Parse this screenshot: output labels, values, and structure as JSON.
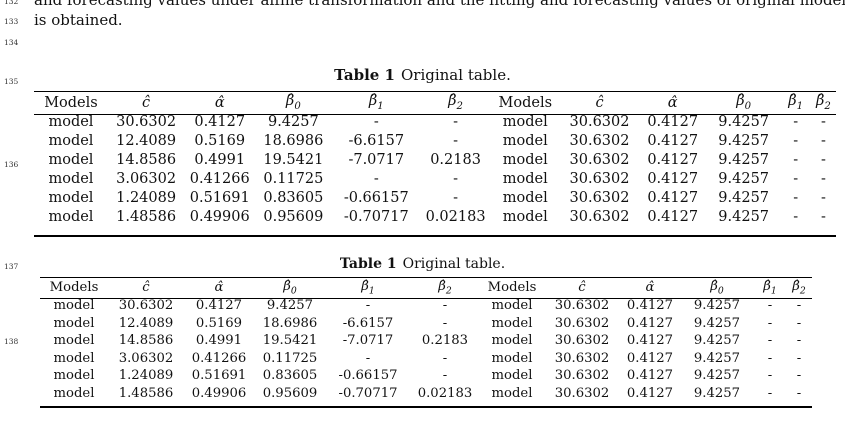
{
  "line_numbers": [
    "132",
    "133",
    "134",
    "135",
    "136",
    "137",
    "138"
  ],
  "body_text": {
    "line1": "and forecasting values under affine transformation and the fitting and forecasting values of original model",
    "line2": "is obtained."
  },
  "table1": {
    "caption_label": "Table 1",
    "caption_text": "Original table.",
    "headers": [
      "Models",
      "ĉ",
      "α̂",
      "β̂0",
      "β̂1",
      "β̂2",
      "Models",
      "ĉ",
      "α̂",
      "β̂0",
      "β̂1",
      "β̂2"
    ],
    "rows": [
      [
        "model",
        "30.6302",
        "0.4127",
        "9.4257",
        "-",
        "-",
        "model",
        "30.6302",
        "0.4127",
        "9.4257",
        "-",
        "-"
      ],
      [
        "model",
        "12.4089",
        "0.5169",
        "18.6986",
        "-6.6157",
        "-",
        "model",
        "30.6302",
        "0.4127",
        "9.4257",
        "-",
        "-"
      ],
      [
        "model",
        "14.8586",
        "0.4991",
        "19.5421",
        "-7.0717",
        "0.2183",
        "model",
        "30.6302",
        "0.4127",
        "9.4257",
        "-",
        "-"
      ],
      [
        "model",
        "3.06302",
        "0.41266",
        "0.11725",
        "-",
        "-",
        "model",
        "30.6302",
        "0.4127",
        "9.4257",
        "-",
        "-"
      ],
      [
        "model",
        "1.24089",
        "0.51691",
        "0.83605",
        "-0.66157",
        "-",
        "model",
        "30.6302",
        "0.4127",
        "9.4257",
        "-",
        "-"
      ],
      [
        "model",
        "1.48586",
        "0.49906",
        "0.95609",
        "-0.70717",
        "0.02183",
        "model",
        "30.6302",
        "0.4127",
        "9.4257",
        "-",
        "-"
      ]
    ]
  },
  "table2": {
    "caption_label": "Table 1",
    "caption_text": "Original table.",
    "headers": [
      "Models",
      "ĉ",
      "α̂",
      "β̂0",
      "β̂1",
      "β̂2",
      "Models",
      "ĉ",
      "α̂",
      "β̂0",
      "β̂1",
      "β̂2"
    ],
    "rows": [
      [
        "model",
        "30.6302",
        "0.4127",
        "9.4257",
        "-",
        "-",
        "model",
        "30.6302",
        "0.4127",
        "9.4257",
        "-",
        "-"
      ],
      [
        "model",
        "12.4089",
        "0.5169",
        "18.6986",
        "-6.6157",
        "-",
        "model",
        "30.6302",
        "0.4127",
        "9.4257",
        "-",
        "-"
      ],
      [
        "model",
        "14.8586",
        "0.4991",
        "19.5421",
        "-7.0717",
        "0.2183",
        "model",
        "30.6302",
        "0.4127",
        "9.4257",
        "-",
        "-"
      ],
      [
        "model",
        "3.06302",
        "0.41266",
        "0.11725",
        "-",
        "-",
        "model",
        "30.6302",
        "0.4127",
        "9.4257",
        "-",
        "-"
      ],
      [
        "model",
        "1.24089",
        "0.51691",
        "0.83605",
        "-0.66157",
        "-",
        "model",
        "30.6302",
        "0.4127",
        "9.4257",
        "-",
        "-"
      ],
      [
        "model",
        "1.48586",
        "0.49906",
        "0.95609",
        "-0.70717",
        "0.02183",
        "model",
        "30.6302",
        "0.4127",
        "9.4257",
        "-",
        "-"
      ]
    ]
  }
}
